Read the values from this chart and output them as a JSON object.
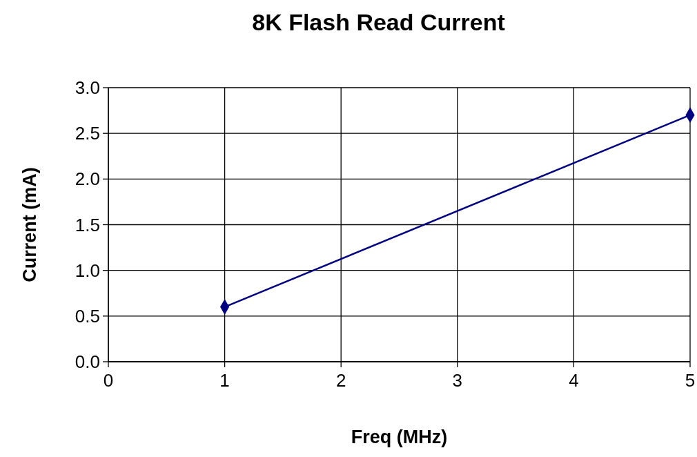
{
  "chart_data": {
    "type": "line",
    "title": "8K Flash Read Current",
    "xlabel": "Freq (MHz)",
    "ylabel": "Current (mA)",
    "x": [
      1,
      5
    ],
    "series": [
      {
        "color": "#000080",
        "values": [
          0.6,
          2.7
        ]
      }
    ],
    "xlim": [
      0,
      5
    ],
    "xticks": [
      0,
      1,
      2,
      3,
      4,
      5
    ],
    "ylim": [
      0,
      3
    ],
    "yticks": [
      {
        "value": 0,
        "label": "0.0"
      },
      {
        "value": 0.5,
        "label": "0.5"
      },
      {
        "value": 1,
        "label": "1.0"
      },
      {
        "value": 1.5,
        "label": "1.5"
      },
      {
        "value": 2,
        "label": "2.0"
      },
      {
        "value": 2.5,
        "label": "2.5"
      },
      {
        "value": 3,
        "label": "3.0"
      }
    ],
    "grid": true,
    "marker": "diamond",
    "line_style": "solid"
  }
}
